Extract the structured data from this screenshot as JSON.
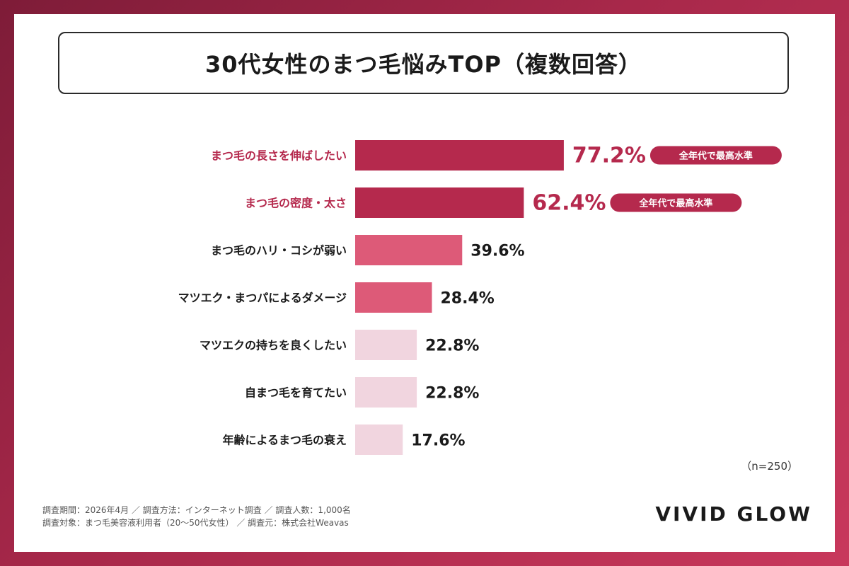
{
  "colors": {
    "top": "#b5294d",
    "mid": "#dd5a78",
    "low": "#f1d5df",
    "accent": "#b5294d",
    "text": "#1a1a1a"
  },
  "chart_data": {
    "type": "bar",
    "orientation": "horizontal",
    "title": "30代女性のまつ毛悩みTOP（複数回答）",
    "categories": [
      "まつ毛の長さを伸ばしたい",
      "まつ毛の密度・太さ",
      "まつ毛のハリ・コシが弱い",
      "マツエク・まつパによるダメージ",
      "マツエクの持ちを良くしたい",
      "自まつ毛を育てたい",
      "年齢によるまつ毛の衰え"
    ],
    "values": [
      77.2,
      62.4,
      39.6,
      28.4,
      22.8,
      22.8,
      17.6
    ],
    "value_labels": [
      "77.2%",
      "62.4%",
      "39.6%",
      "28.4%",
      "22.8%",
      "22.8%",
      "17.6%"
    ],
    "tiers": [
      "top",
      "top",
      "mid",
      "mid",
      "low",
      "low",
      "low"
    ],
    "badges": [
      "全年代で最高水準",
      "全年代で最高水準",
      "",
      "",
      "",
      "",
      ""
    ],
    "n_label": "（n=250）",
    "xlim": [
      0,
      100
    ]
  },
  "footer": {
    "line1": "調査期間：2026年4月 ／ 調査方法：インターネット調査 ／ 調査人数：1,000名",
    "line2": "調査対象：まつ毛美容液利用者（20〜50代女性） ／ 調査元：株式会社Weavas"
  },
  "brand": "VIVID GLOW"
}
